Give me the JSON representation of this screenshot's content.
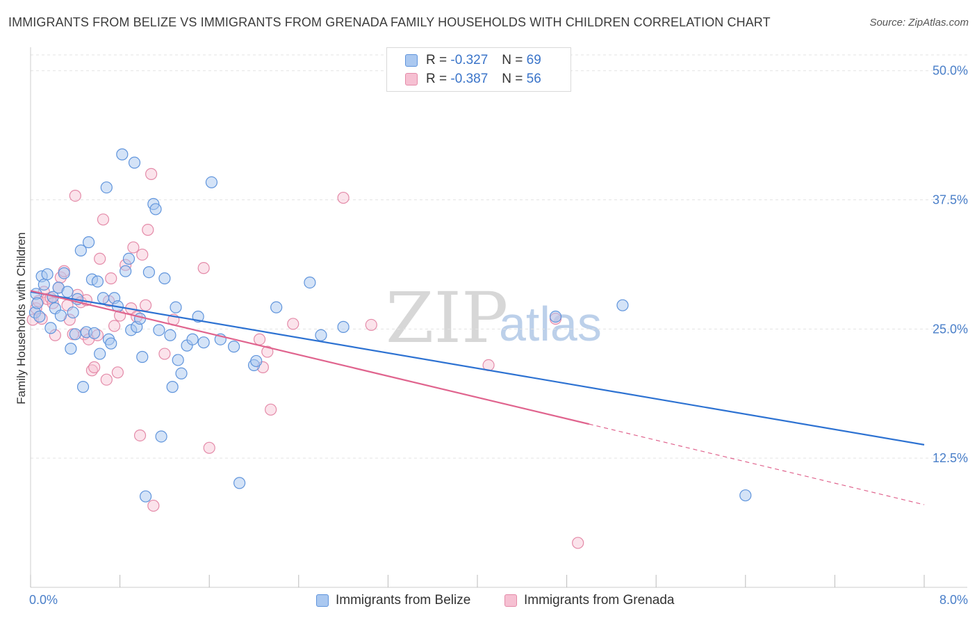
{
  "title": "IMMIGRANTS FROM BELIZE VS IMMIGRANTS FROM GRENADA FAMILY HOUSEHOLDS WITH CHILDREN CORRELATION CHART",
  "source": "Source: ZipAtlas.com",
  "legend": {
    "belize": {
      "r_label": "R =",
      "r_value": "-0.327",
      "n_label": "N =",
      "n_value": "69"
    },
    "grenada": {
      "r_label": "R =",
      "r_value": "-0.387",
      "n_label": "N =",
      "n_value": "56"
    }
  },
  "watermark": {
    "zip": "ZIP",
    "atlas": "atlas"
  },
  "colors": {
    "belize_fill": "#aac8f0",
    "belize_stroke": "#5f94dc",
    "belize_line": "#2d72d2",
    "grenada_fill": "#f6c0d2",
    "grenada_stroke": "#e48aa8",
    "grenada_line": "#e0648e",
    "grid": "#e3e3e3",
    "axis_text": "#4a7fc9"
  },
  "chart_data": {
    "type": "scatter",
    "title": "IMMIGRANTS FROM BELIZE VS IMMIGRANTS FROM GRENADA FAMILY HOUSEHOLDS WITH CHILDREN CORRELATION CHART",
    "xlabel": "",
    "ylabel": "Family Households with Children",
    "xlim": [
      0,
      8
    ],
    "ylim": [
      0,
      52
    ],
    "x_tick_labels": [
      "0.0%",
      "8.0%"
    ],
    "y_ticks": [
      12.5,
      25.0,
      37.5,
      50.0
    ],
    "y_tick_labels": [
      "12.5%",
      "25.0%",
      "37.5%",
      "50.0%"
    ],
    "grid": true,
    "legend_position": "bottom",
    "series": [
      {
        "name": "Immigrants from Belize",
        "r": -0.327,
        "n": 69,
        "trend": {
          "x": [
            0.0,
            8.0
          ],
          "y": [
            28.6,
            13.8
          ]
        },
        "points": [
          [
            0.04,
            26.6
          ],
          [
            0.05,
            28.4
          ],
          [
            0.06,
            27.5
          ],
          [
            0.08,
            26.2
          ],
          [
            0.1,
            30.1
          ],
          [
            0.12,
            29.3
          ],
          [
            0.15,
            30.3
          ],
          [
            0.18,
            25.1
          ],
          [
            0.2,
            28.1
          ],
          [
            0.22,
            27.0
          ],
          [
            0.25,
            29.0
          ],
          [
            0.27,
            26.3
          ],
          [
            0.3,
            30.4
          ],
          [
            0.33,
            28.6
          ],
          [
            0.36,
            23.1
          ],
          [
            0.38,
            26.6
          ],
          [
            0.4,
            24.5
          ],
          [
            0.42,
            27.9
          ],
          [
            0.45,
            32.6
          ],
          [
            0.47,
            19.4
          ],
          [
            0.5,
            24.7
          ],
          [
            0.52,
            33.4
          ],
          [
            0.55,
            29.8
          ],
          [
            0.57,
            24.6
          ],
          [
            0.6,
            29.6
          ],
          [
            0.62,
            22.6
          ],
          [
            0.65,
            28.0
          ],
          [
            0.68,
            38.7
          ],
          [
            0.7,
            24.0
          ],
          [
            0.72,
            23.6
          ],
          [
            0.75,
            28.0
          ],
          [
            0.78,
            27.2
          ],
          [
            0.82,
            41.9
          ],
          [
            0.85,
            30.6
          ],
          [
            0.88,
            31.8
          ],
          [
            0.9,
            24.9
          ],
          [
            0.93,
            41.1
          ],
          [
            0.95,
            25.2
          ],
          [
            0.98,
            26.0
          ],
          [
            1.0,
            22.3
          ],
          [
            1.03,
            8.8
          ],
          [
            1.06,
            30.5
          ],
          [
            1.1,
            37.1
          ],
          [
            1.12,
            36.6
          ],
          [
            1.15,
            24.9
          ],
          [
            1.17,
            14.6
          ],
          [
            1.2,
            29.9
          ],
          [
            1.25,
            24.4
          ],
          [
            1.27,
            19.4
          ],
          [
            1.3,
            27.1
          ],
          [
            1.32,
            22.0
          ],
          [
            1.35,
            20.7
          ],
          [
            1.4,
            23.4
          ],
          [
            1.45,
            24.0
          ],
          [
            1.5,
            26.2
          ],
          [
            1.55,
            23.7
          ],
          [
            1.62,
            39.2
          ],
          [
            1.7,
            24.0
          ],
          [
            1.82,
            23.3
          ],
          [
            1.87,
            10.1
          ],
          [
            2.0,
            21.5
          ],
          [
            2.02,
            21.9
          ],
          [
            2.2,
            27.1
          ],
          [
            2.5,
            29.5
          ],
          [
            2.6,
            24.4
          ],
          [
            2.8,
            25.2
          ],
          [
            4.7,
            26.2
          ],
          [
            5.3,
            27.3
          ],
          [
            6.4,
            8.9
          ]
        ]
      },
      {
        "name": "Immigrants from Grenada",
        "r": -0.387,
        "n": 56,
        "trend": {
          "x": [
            0.0,
            5.0
          ],
          "y": [
            28.7,
            15.8
          ]
        },
        "trend_dashed": {
          "x": [
            5.0,
            8.0
          ],
          "y": [
            15.8,
            8.0
          ]
        },
        "points": [
          [
            0.02,
            25.9
          ],
          [
            0.05,
            27.0
          ],
          [
            0.07,
            27.7
          ],
          [
            0.1,
            26.0
          ],
          [
            0.12,
            28.6
          ],
          [
            0.15,
            27.9
          ],
          [
            0.18,
            28.0
          ],
          [
            0.2,
            27.5
          ],
          [
            0.22,
            24.4
          ],
          [
            0.25,
            29.0
          ],
          [
            0.27,
            30.0
          ],
          [
            0.3,
            30.6
          ],
          [
            0.33,
            27.3
          ],
          [
            0.35,
            25.9
          ],
          [
            0.38,
            24.5
          ],
          [
            0.4,
            37.9
          ],
          [
            0.42,
            28.3
          ],
          [
            0.45,
            27.6
          ],
          [
            0.48,
            24.5
          ],
          [
            0.5,
            27.8
          ],
          [
            0.52,
            24.0
          ],
          [
            0.55,
            21.0
          ],
          [
            0.57,
            21.3
          ],
          [
            0.6,
            24.4
          ],
          [
            0.62,
            31.8
          ],
          [
            0.65,
            35.6
          ],
          [
            0.68,
            20.1
          ],
          [
            0.7,
            27.7
          ],
          [
            0.72,
            29.9
          ],
          [
            0.75,
            25.3
          ],
          [
            0.78,
            20.8
          ],
          [
            0.8,
            26.3
          ],
          [
            0.85,
            31.2
          ],
          [
            0.9,
            27.0
          ],
          [
            0.92,
            32.9
          ],
          [
            0.95,
            26.2
          ],
          [
            0.98,
            14.7
          ],
          [
            1.0,
            32.2
          ],
          [
            1.03,
            27.3
          ],
          [
            1.05,
            34.6
          ],
          [
            1.08,
            40.0
          ],
          [
            1.1,
            7.9
          ],
          [
            1.2,
            22.6
          ],
          [
            1.28,
            25.9
          ],
          [
            1.55,
            30.9
          ],
          [
            1.6,
            13.5
          ],
          [
            2.05,
            24.0
          ],
          [
            2.08,
            21.3
          ],
          [
            2.12,
            22.8
          ],
          [
            2.15,
            17.2
          ],
          [
            2.35,
            25.5
          ],
          [
            2.8,
            37.7
          ],
          [
            3.05,
            25.4
          ],
          [
            4.1,
            21.5
          ],
          [
            4.7,
            26.0
          ],
          [
            4.9,
            4.3
          ]
        ]
      }
    ]
  },
  "bottom_legend": {
    "belize_label": "Immigrants from Belize",
    "grenada_label": "Immigrants from Grenada"
  }
}
